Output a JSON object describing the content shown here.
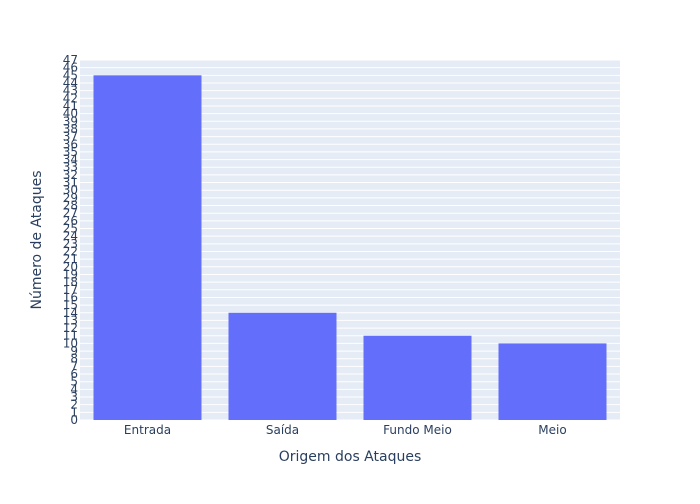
{
  "chart_data": {
    "type": "bar",
    "title": "",
    "xlabel": "Origem dos Ataques",
    "ylabel": "Número de Ataques",
    "categories": [
      "Entrada",
      "Saída",
      "Fundo Meio",
      "Meio"
    ],
    "values": [
      45,
      14,
      11,
      10
    ],
    "ylim": [
      0,
      47
    ],
    "y_tick_step": 1,
    "grid": true,
    "legend": "none",
    "colors": {
      "bar": "#636efa",
      "plot_background": "#e5ecf6",
      "grid": "#ffffff",
      "tick_text": "#2a3f5f",
      "axis_title_text": "#2a3f5f"
    }
  }
}
